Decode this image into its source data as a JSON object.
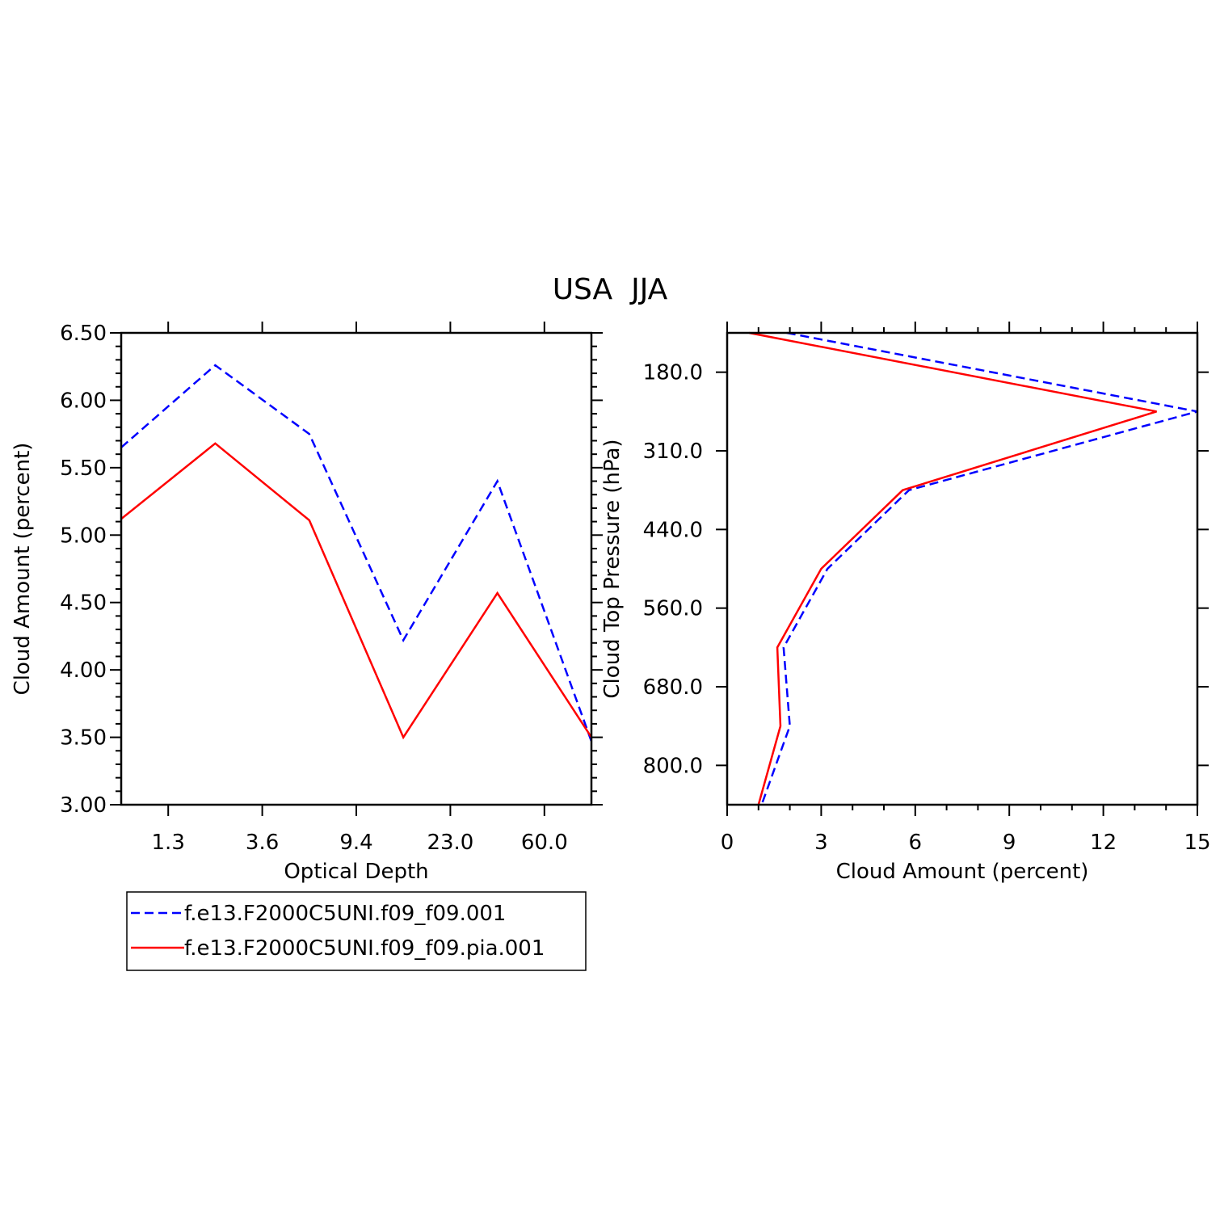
{
  "figure": {
    "title": "USA  JJA"
  },
  "colors": {
    "series1": "#0000ff",
    "series2": "#ff0000",
    "axis": "#000000"
  },
  "chart_data": [
    {
      "type": "line",
      "xlabel": "Optical Depth",
      "ylabel": "Cloud Amount (percent)",
      "x_tick_labels": [
        "1.3",
        "3.6",
        "9.4",
        "23.0",
        "60.0"
      ],
      "x_tick_positions": [
        1,
        3,
        5,
        7,
        9
      ],
      "xlim": [
        0,
        10
      ],
      "y_ticks": [
        "3.00",
        "3.50",
        "4.00",
        "4.50",
        "5.00",
        "5.50",
        "6.00",
        "6.50"
      ],
      "ylim": [
        3.0,
        6.5
      ],
      "x": [
        0,
        2,
        4,
        6,
        8,
        10
      ],
      "series": [
        {
          "name": "f.e13.F2000C5UNI.f09_f09.001",
          "style": "dashed",
          "values": [
            5.65,
            6.26,
            5.75,
            4.22,
            5.4,
            3.47
          ]
        },
        {
          "name": "f.e13.F2000C5UNI.f09_f09.pia.001",
          "style": "solid",
          "values": [
            5.12,
            5.68,
            5.11,
            3.5,
            4.57,
            3.5
          ]
        }
      ],
      "legend_position": "below"
    },
    {
      "type": "line",
      "xlabel": "Cloud Amount (percent)",
      "ylabel": "Cloud Top Pressure (hPa)",
      "x_ticks": [
        "0",
        "3",
        "6",
        "9",
        "12",
        "15"
      ],
      "xlim": [
        0,
        15
      ],
      "y_tick_labels": [
        "180.0",
        "310.0",
        "440.0",
        "560.0",
        "680.0",
        "800.0"
      ],
      "y_tick_positions": [
        1,
        3,
        5,
        7,
        9,
        11
      ],
      "ylim": [
        0,
        12
      ],
      "y": [
        0,
        2,
        4,
        6,
        8,
        10,
        12
      ],
      "series": [
        {
          "name": "f.e13.F2000C5UNI.f09_f09.001",
          "style": "dashed",
          "values": [
            1.9,
            15.0,
            5.8,
            3.2,
            1.8,
            2.0,
            1.1
          ]
        },
        {
          "name": "f.e13.F2000C5UNI.f09_f09.pia.001",
          "style": "solid",
          "values": [
            0.7,
            13.7,
            5.6,
            3.0,
            1.6,
            1.7,
            1.0
          ]
        }
      ]
    }
  ]
}
